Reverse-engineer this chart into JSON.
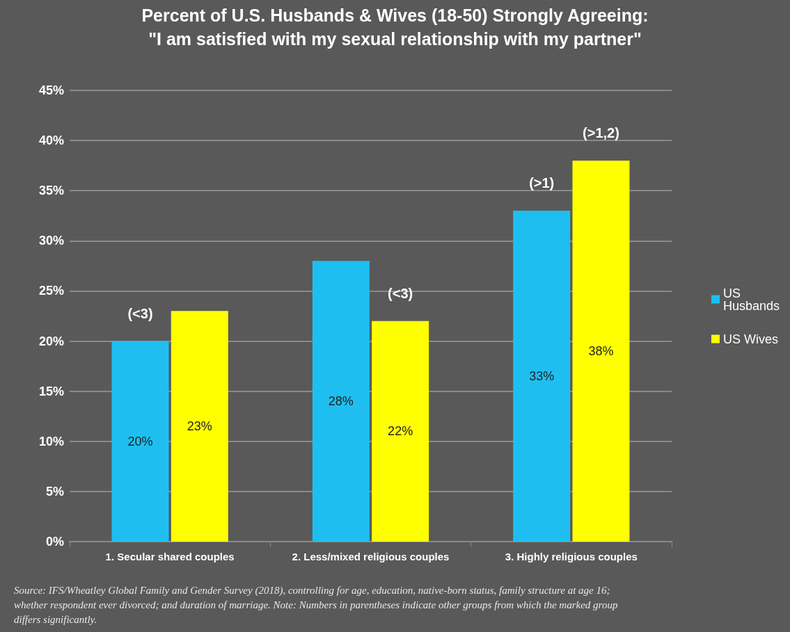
{
  "chart_data": {
    "type": "bar",
    "title": "Percent of U.S. Husbands & Wives (18-50) Strongly Agreeing:\n\"I am satisfied with my sexual relationship with my partner\"",
    "categories": [
      "1. Secular shared couples",
      "2. Less/mixed religious couples",
      "3. Highly religious couples"
    ],
    "series": [
      {
        "name": "US Husbands",
        "color": "#1ebff0",
        "values": [
          20,
          28,
          33
        ],
        "value_labels": [
          "20%",
          "28%",
          "33%"
        ]
      },
      {
        "name": "US Wives",
        "color": "#ffff00",
        "values": [
          23,
          22,
          38
        ],
        "value_labels": [
          "23%",
          "22%",
          "38%"
        ]
      }
    ],
    "ylim": [
      0,
      45
    ],
    "yticks": [
      {
        "value": 0,
        "label": "0%"
      },
      {
        "value": 5,
        "label": "5%"
      },
      {
        "value": 10,
        "label": "10%"
      },
      {
        "value": 15,
        "label": "15%"
      },
      {
        "value": 20,
        "label": "20%"
      },
      {
        "value": 25,
        "label": "25%"
      },
      {
        "value": 30,
        "label": "30%"
      },
      {
        "value": 35,
        "label": "35%"
      },
      {
        "value": 40,
        "label": "40%"
      },
      {
        "value": 45,
        "label": "45%"
      }
    ],
    "grid": "y",
    "legend": "right",
    "annotations": [
      {
        "text": "(<3)",
        "x": "1. Secular shared couples",
        "y": 20
      },
      {
        "text": "(<3)",
        "x": "2. Less/mixed religious couples",
        "y": 22
      },
      {
        "text": "(>1)",
        "x": "3. Highly religious couples",
        "y": 33
      },
      {
        "text": "(>1,2)",
        "x": "3. Highly religious couples",
        "y": 38
      },
      "Source: IFS/Wheatley Global Family and Gender Survey (2018), controlling for age, education, native-born status, family structure at age 16; whether respondent ever divorced; and duration of marriage. Note: Numbers in parentheses indicate other groups from which the marked group differs significantly."
    ]
  }
}
